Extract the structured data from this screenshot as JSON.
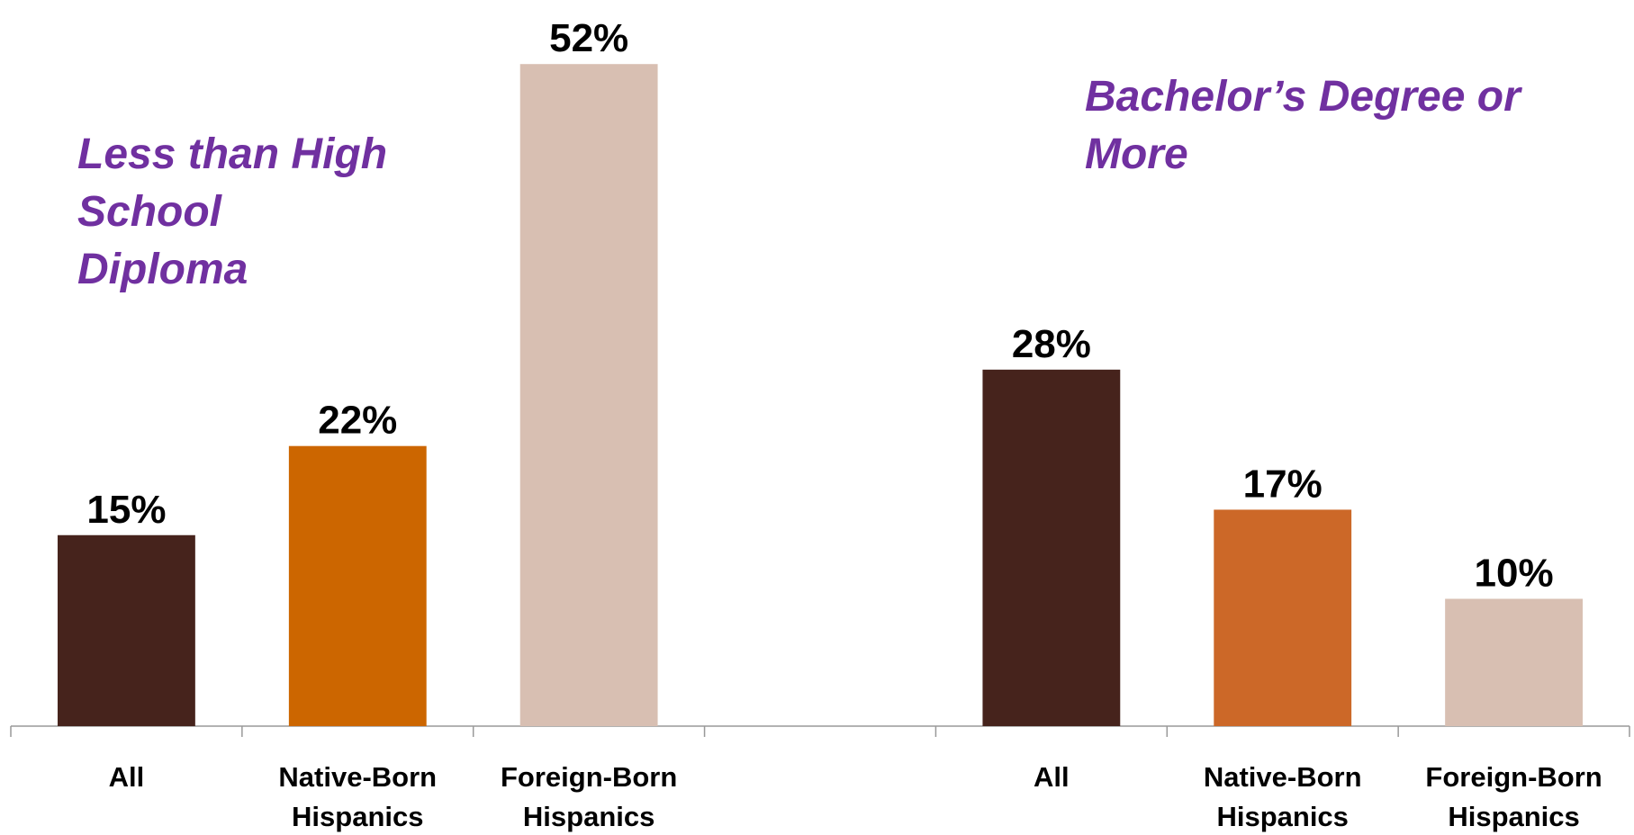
{
  "chart_data": {
    "type": "bar",
    "annotations": [
      "Less than High School Diploma",
      "Bachelor’s Degree or More"
    ],
    "categories": [
      "All",
      "Native-Born Hispanics",
      "Foreign-Born Hispanics",
      null,
      "All",
      "Native-Born Hispanics",
      "Foreign-Born Hispanics"
    ],
    "values": [
      15,
      22,
      52,
      null,
      28,
      17,
      10
    ],
    "value_labels": [
      "15%",
      "22%",
      "52%",
      null,
      "28%",
      "17%",
      "10%"
    ],
    "colors": [
      "#46231c",
      "#cc6600",
      "#d8bfb2",
      null,
      "#46231c",
      "#cc6828",
      "#d8bfb2"
    ]
  }
}
